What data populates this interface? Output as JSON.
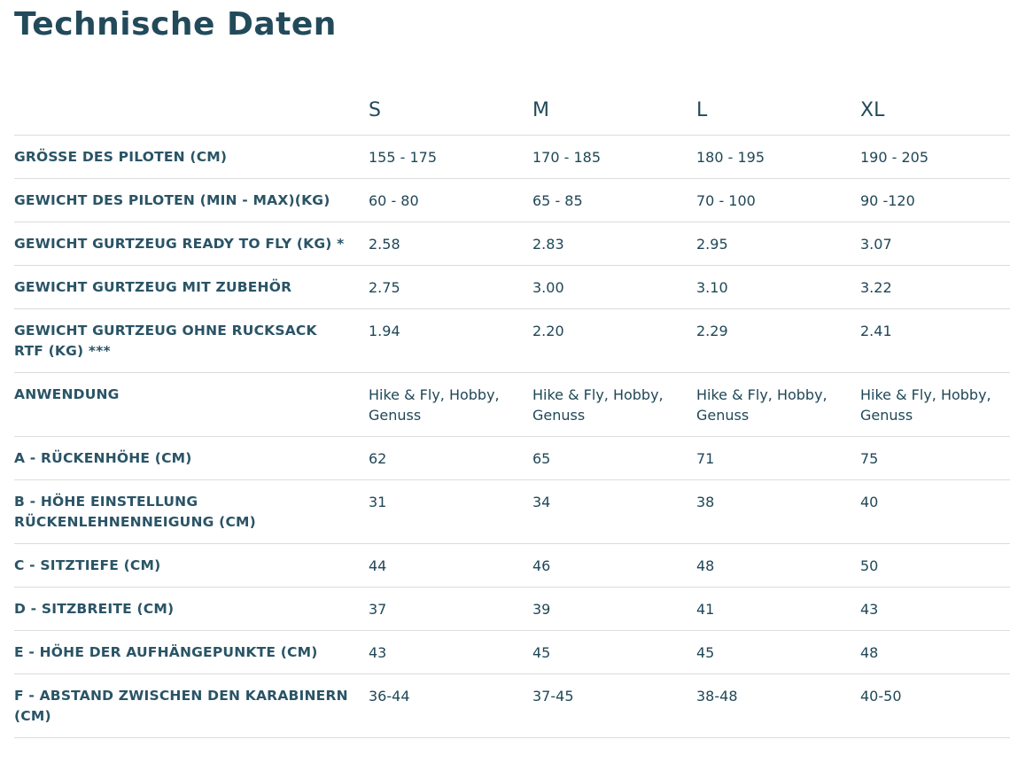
{
  "title": "Technische Daten",
  "sizes": [
    "S",
    "M",
    "L",
    "XL"
  ],
  "rows": [
    {
      "label": "GRÖSSE DES PILOTEN (CM)",
      "values": [
        "155 - 175",
        "170 - 185",
        "180 - 195",
        "190 - 205"
      ]
    },
    {
      "label": "GEWICHT DES PILOTEN (MIN - MAX)(KG)",
      "values": [
        "60 - 80",
        "65 - 85",
        "70 - 100",
        "90 -120"
      ]
    },
    {
      "label": "GEWICHT GURTZEUG READY TO FLY (KG) *",
      "values": [
        "2.58",
        "2.83",
        "2.95",
        "3.07"
      ]
    },
    {
      "label": "GEWICHT GURTZEUG MIT ZUBEHÖR",
      "values": [
        "2.75",
        "3.00",
        "3.10",
        "3.22"
      ]
    },
    {
      "label": "GEWICHT GURTZEUG OHNE RUCKSACK RTF (KG) ***",
      "values": [
        "1.94",
        "2.20",
        "2.29",
        "2.41"
      ]
    },
    {
      "label": "ANWENDUNG",
      "values": [
        "Hike & Fly, Hobby, Genuss",
        "Hike & Fly, Hobby, Genuss",
        "Hike & Fly, Hobby, Genuss",
        "Hike & Fly, Hobby, Genuss"
      ]
    },
    {
      "label": "A - RÜCKENHÖHE (CM)",
      "values": [
        "62",
        "65",
        "71",
        "75"
      ]
    },
    {
      "label": "B - HÖHE EINSTELLUNG RÜCKENLEHNENNEIGUNG (CM)",
      "values": [
        "31",
        "34",
        "38",
        "40"
      ]
    },
    {
      "label": "C - SITZTIEFE (CM)",
      "values": [
        "44",
        "46",
        "48",
        "50"
      ]
    },
    {
      "label": "D - SITZBREITE (CM)",
      "values": [
        "37",
        "39",
        "41",
        "43"
      ]
    },
    {
      "label": "E - HÖHE DER AUFHÄNGEPUNKTE (CM)",
      "values": [
        "43",
        "45",
        "45",
        "48"
      ]
    },
    {
      "label": "F - ABSTAND ZWISCHEN DEN KARABINERN (CM)",
      "values": [
        "36-44",
        "37-45",
        "38-48",
        "40-50"
      ]
    }
  ]
}
